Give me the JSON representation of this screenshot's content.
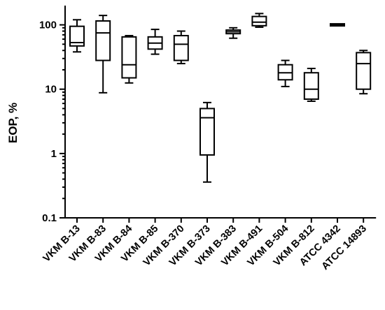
{
  "chart_data": {
    "type": "box",
    "ylabel": "EOP, %",
    "yscale": "log",
    "ylim": [
      0.1,
      200
    ],
    "yticks": [
      {
        "value": 0.1,
        "label": "0.1"
      },
      {
        "value": 1,
        "label": "1"
      },
      {
        "value": 10,
        "label": "10"
      },
      {
        "value": 100,
        "label": "100"
      }
    ],
    "categories": [
      "VKM B-13",
      "VKM B-83",
      "VKM B-84",
      "VKM B-85",
      "VKM B-370",
      "VKM B-373",
      "VKM B-383",
      "VKM B-491",
      "VKM B-504",
      "VKM B-812",
      "ATCC 4342",
      "ATCC 14893"
    ],
    "boxes": [
      {
        "min": 38,
        "q1": 47,
        "median": 53,
        "q3": 95,
        "max": 120
      },
      {
        "min": 8.8,
        "q1": 28,
        "median": 75,
        "q3": 115,
        "max": 140
      },
      {
        "min": 12.5,
        "q1": 15,
        "median": 24,
        "q3": 65,
        "max": 68
      },
      {
        "min": 35,
        "q1": 42,
        "median": 52,
        "q3": 65,
        "max": 85
      },
      {
        "min": 25,
        "q1": 28,
        "median": 50,
        "q3": 68,
        "max": 80
      },
      {
        "min": 0.36,
        "q1": 0.95,
        "median": 3.6,
        "q3": 5.0,
        "max": 6.2
      },
      {
        "min": 62,
        "q1": 73,
        "median": 78,
        "q3": 83,
        "max": 90
      },
      {
        "min": 92,
        "q1": 97,
        "median": 110,
        "q3": 135,
        "max": 150
      },
      {
        "min": 11,
        "q1": 14,
        "median": 18,
        "q3": 24,
        "max": 28
      },
      {
        "min": 6.5,
        "q1": 7,
        "median": 10,
        "q3": 18,
        "max": 21
      },
      {
        "min": 100,
        "q1": 100,
        "median": 100,
        "q3": 100,
        "max": 100
      },
      {
        "min": 8.5,
        "q1": 10,
        "median": 25,
        "q3": 37,
        "max": 40
      }
    ]
  }
}
